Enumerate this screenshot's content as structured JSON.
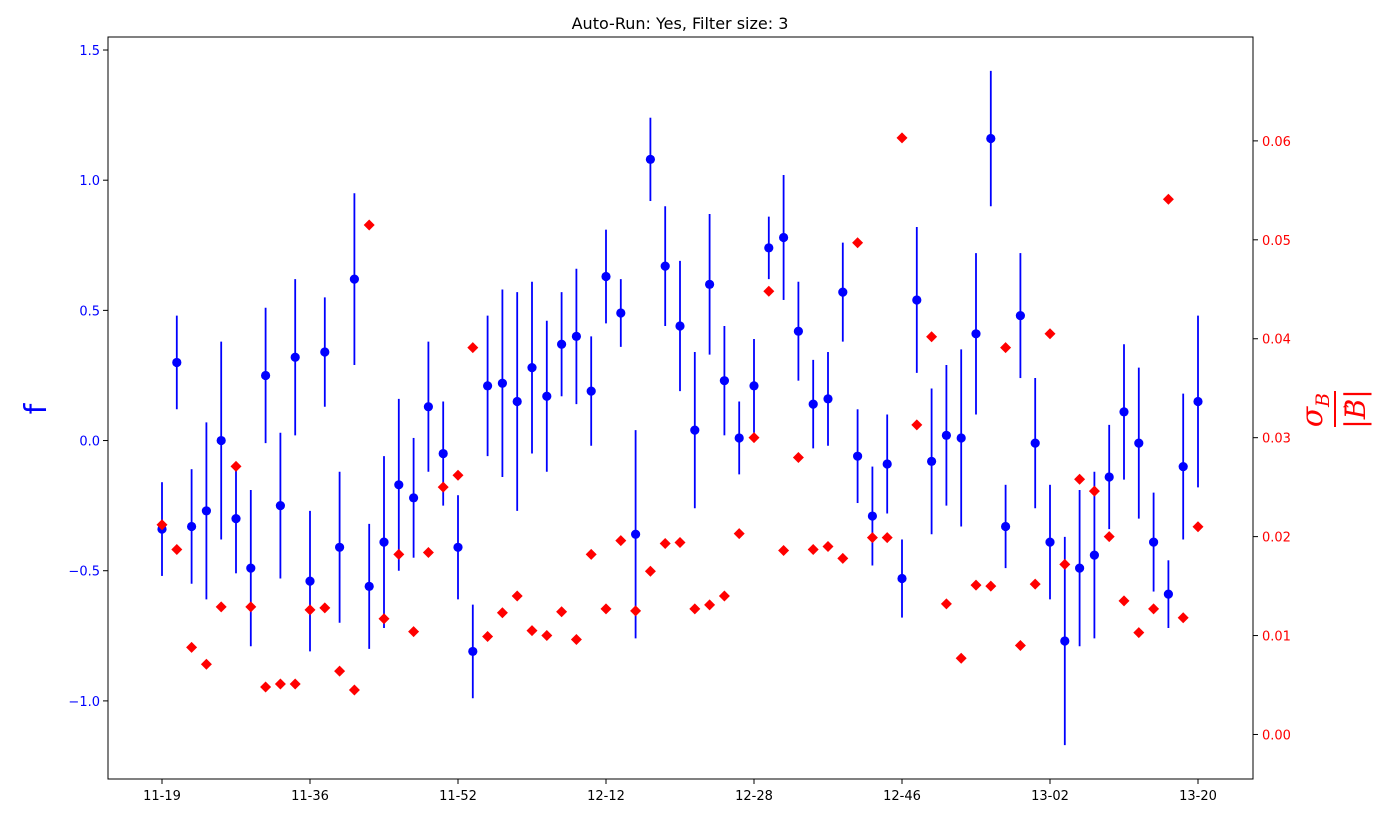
{
  "chart_data": {
    "type": "scatter",
    "title": "Auto-Run: Yes, Filter size: 3",
    "x_tick_labels": [
      "11-19",
      "11-36",
      "11-52",
      "12-12",
      "12-28",
      "12-46",
      "13-02",
      "13-20"
    ],
    "left_axis": {
      "label": "f",
      "color": "#0000ff",
      "ylim": [
        -1.3,
        1.55
      ],
      "ticks": [
        -1.0,
        -0.5,
        0.0,
        0.5,
        1.0,
        1.5
      ],
      "tick_labels": [
        "−1.0",
        "−0.5",
        "0.0",
        "0.5",
        "1.0",
        "1.5"
      ]
    },
    "right_axis": {
      "label": "σ_B / |B⃗|",
      "label_parts": {
        "sigma": "σ",
        "sub": "B",
        "denominator": "|B|",
        "arrow": "→"
      },
      "color": "#ff0000",
      "ylim": [
        -0.0045,
        0.0705
      ],
      "ticks": [
        0.0,
        0.01,
        0.02,
        0.03,
        0.04,
        0.05,
        0.06
      ],
      "tick_labels": [
        "0.00",
        "0.01",
        "0.02",
        "0.03",
        "0.04",
        "0.05",
        "0.06"
      ]
    },
    "x": [
      0,
      1,
      2,
      3,
      4,
      5,
      6,
      7,
      8,
      9,
      10,
      11,
      12,
      13,
      14,
      15,
      16,
      17,
      18,
      19,
      20,
      21,
      22,
      23,
      24,
      25,
      26,
      27,
      28,
      29,
      30,
      31,
      32,
      33,
      34,
      35,
      36,
      37,
      38,
      39,
      40,
      41,
      42,
      43,
      44,
      45,
      46,
      47,
      48,
      49,
      50,
      51,
      52,
      53,
      54,
      55,
      56,
      57,
      58,
      59,
      60,
      61,
      62,
      63,
      64,
      65,
      66,
      67,
      68,
      69,
      70
    ],
    "series": [
      {
        "name": "f",
        "marker": "circle",
        "color": "#0000ff",
        "values": [
          -0.34,
          0.3,
          -0.33,
          -0.27,
          0.0,
          -0.3,
          -0.49,
          0.25,
          -0.25,
          0.32,
          -0.54,
          0.34,
          -0.41,
          0.62,
          -0.56,
          -0.39,
          -0.17,
          -0.22,
          0.13,
          -0.05,
          -0.41,
          -0.81,
          0.21,
          0.22,
          0.15,
          0.28,
          0.17,
          0.37,
          0.4,
          0.19,
          0.63,
          0.49,
          -0.36,
          1.08,
          0.67,
          0.44,
          0.04,
          0.6,
          0.23,
          0.01,
          0.21,
          0.74,
          0.78,
          0.42,
          0.14,
          0.16,
          0.57,
          -0.06,
          -0.29,
          -0.09,
          -0.53,
          0.54,
          -0.08,
          0.02,
          0.01,
          0.41,
          1.16,
          -0.33,
          0.48,
          -0.01,
          -0.39,
          -0.77,
          -0.49,
          -0.44,
          -0.14,
          0.11,
          -0.01,
          -0.39,
          -0.59,
          -0.1,
          0.15
        ],
        "errors": [
          0.18,
          0.18,
          0.22,
          0.34,
          0.38,
          0.21,
          0.3,
          0.26,
          0.28,
          0.3,
          0.27,
          0.21,
          0.29,
          0.33,
          0.24,
          0.33,
          0.33,
          0.23,
          0.25,
          0.2,
          0.2,
          0.18,
          0.27,
          0.36,
          0.42,
          0.33,
          0.29,
          0.2,
          0.26,
          0.21,
          0.18,
          0.13,
          0.4,
          0.16,
          0.23,
          0.25,
          0.3,
          0.27,
          0.21,
          0.14,
          0.18,
          0.12,
          0.24,
          0.19,
          0.17,
          0.18,
          0.19,
          0.18,
          0.19,
          0.19,
          0.15,
          0.28,
          0.28,
          0.27,
          0.34,
          0.31,
          0.26,
          0.16,
          0.24,
          0.25,
          0.22,
          0.4,
          0.3,
          0.32,
          0.2,
          0.26,
          0.29,
          0.19,
          0.13,
          0.28,
          0.33
        ]
      },
      {
        "name": "σ_B / |B|",
        "marker": "diamond",
        "color": "#ff0000",
        "values": [
          0.0212,
          0.0187,
          0.0088,
          0.0071,
          0.0129,
          0.0271,
          0.0129,
          0.0048,
          0.0051,
          0.0051,
          0.0126,
          0.0128,
          0.0064,
          0.0045,
          0.0515,
          0.0117,
          0.0182,
          0.0104,
          0.0184,
          0.025,
          0.0262,
          0.0391,
          0.0099,
          0.0123,
          0.014,
          0.0105,
          0.01,
          0.0124,
          0.0096,
          0.0182,
          0.0127,
          0.0196,
          0.0125,
          0.0165,
          0.0193,
          0.0194,
          0.0127,
          0.0131,
          0.014,
          0.0203,
          0.03,
          0.0448,
          0.0186,
          0.028,
          0.0187,
          0.019,
          0.0178,
          0.0497,
          0.0199,
          0.0199,
          0.0603,
          0.0313,
          0.0402,
          0.0132,
          0.0077,
          0.0151,
          0.015,
          0.0391,
          0.009,
          0.0152,
          0.0405,
          0.0172,
          0.0258,
          0.0246,
          0.02,
          0.0135,
          0.0103,
          0.0127,
          0.0541,
          0.0118,
          0.021
        ]
      }
    ],
    "grid": false,
    "legend": "none"
  }
}
